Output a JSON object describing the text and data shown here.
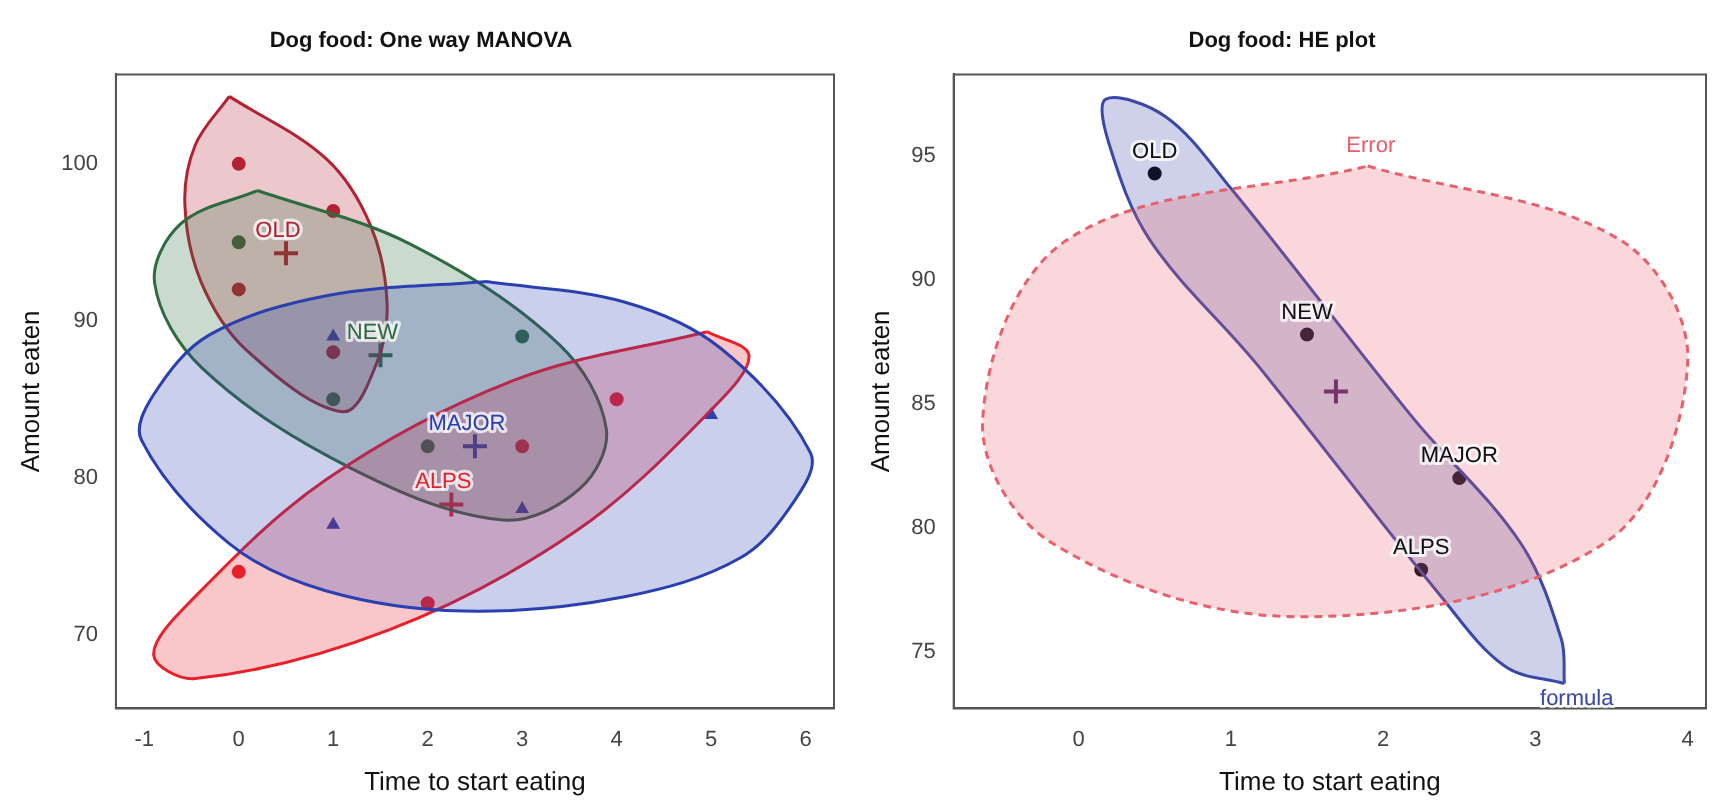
{
  "chart_data": [
    {
      "type": "scatter",
      "title": "Dog food: One way MANOVA",
      "xlabel": "Time to start eating",
      "ylabel": "Amount eaten",
      "xlim": [
        -1.3,
        6.3
      ],
      "ylim": [
        65.3,
        105.7
      ],
      "xticks": [
        -1,
        0,
        1,
        2,
        3,
        4,
        5,
        6
      ],
      "yticks": [
        70,
        80,
        90,
        100
      ],
      "grid": false,
      "series": [
        {
          "type": "area",
          "color": "#2a3fb0",
          "x": [
            2.62,
            0.93,
            -0.31,
            -0.9,
            -1.03,
            -0.1,
            0.92,
            2.38,
            4.07,
            5.31,
            5.9,
            6.05,
            5.1,
            4.08
          ],
          "values": [
            92.5,
            91.6,
            89.1,
            85.3,
            82.4,
            75.8,
            72.8,
            71.5,
            72.4,
            74.9,
            78.7,
            81.6,
            88.25,
            91.2
          ]
        },
        {
          "type": "area",
          "color": "#e8202a",
          "x": [
            4.96,
            5.4,
            5.03,
            3.57,
            1.59,
            -0.46,
            -0.9,
            -0.53,
            0.93,
            2.91
          ],
          "values": [
            89.3,
            87.8,
            84.5,
            76.6,
            70.3,
            67.2,
            68.7,
            72,
            79.9,
            86.2
          ]
        },
        {
          "type": "area",
          "color": "#2e6b3e",
          "x": [
            0.2,
            -0.61,
            -0.89,
            -0.39,
            1.19,
            2.8,
            3.61,
            3.89,
            3.39,
            1.81
          ],
          "values": [
            98.3,
            96.2,
            92.4,
            87,
            80.6,
            77.3,
            79.3,
            83.1,
            88.5,
            94.9
          ]
        },
        {
          "type": "area",
          "color": "#b22232",
          "x": [
            -0.1,
            -0.46,
            -0.57,
            -0.4,
            0.07,
            1.1,
            1.46,
            1.57,
            1.4,
            0.93
          ],
          "values": [
            104.3,
            101.2,
            97.4,
            92.5,
            88.2,
            84.2,
            87.3,
            91.1,
            96,
            100.3
          ]
        },
        {
          "type": "scatter",
          "marker": "circle",
          "color": "#b22232",
          "x": [
            0,
            1,
            0,
            1
          ],
          "values": [
            100,
            97,
            92,
            88
          ]
        },
        {
          "type": "scatter",
          "marker": "circle",
          "color": "#2e6b3e",
          "x": [
            0,
            1,
            2,
            3
          ],
          "values": [
            95,
            85,
            82,
            89
          ]
        },
        {
          "type": "scatter",
          "marker": "triangle",
          "color": "#2a3fb0",
          "x": [
            1,
            1,
            3,
            5
          ],
          "values": [
            89,
            77,
            78,
            84
          ]
        },
        {
          "type": "scatter",
          "marker": "circle",
          "color": "#e8202a",
          "x": [
            0,
            2,
            3,
            4
          ],
          "values": [
            74,
            72,
            82,
            85
          ]
        },
        {
          "type": "scatter",
          "marker": "cross",
          "name": "OLD",
          "color": "#b22232",
          "x": [
            0.5
          ],
          "values": [
            94.3
          ]
        },
        {
          "type": "scatter",
          "marker": "cross",
          "name": "NEW",
          "color": "#2e6b3e",
          "x": [
            1.5
          ],
          "values": [
            87.8
          ]
        },
        {
          "type": "scatter",
          "marker": "cross",
          "name": "MAJOR",
          "color": "#2a3fb0",
          "x": [
            2.5
          ],
          "values": [
            82
          ]
        },
        {
          "type": "scatter",
          "marker": "cross",
          "name": "ALPS",
          "color": "#e8202a",
          "x": [
            2.25
          ],
          "values": [
            78.3
          ]
        }
      ]
    },
    {
      "type": "scatter",
      "title": "Dog food: HE plot",
      "xlabel": "Time to start eating",
      "ylabel": "Amount eaten",
      "xlim": [
        -0.82,
        4.12
      ],
      "ylim": [
        72.7,
        98.3
      ],
      "xticks": [
        0,
        1,
        2,
        3,
        4
      ],
      "yticks": [
        75,
        80,
        85,
        90,
        95
      ],
      "grid": false,
      "series": [
        {
          "type": "area",
          "name": "Error",
          "color": "#e8606c",
          "line_style": "dashed",
          "x": [
            1.9,
            3.56,
            4.0,
            3.46,
            1.45,
            -0.18,
            -0.63,
            -0.08
          ],
          "values": [
            94.6,
            91.6,
            86.7,
            79.4,
            76.4,
            79.4,
            84.3,
            91.6
          ]
        },
        {
          "type": "area",
          "name": "formula",
          "color": "#3a48a8",
          "x": [
            3.19,
            2.8,
            2.37,
            1.17,
            0.47,
            0.2,
            0.18,
            0.57,
            1.0,
            2.2,
            2.9,
            3.17
          ],
          "values": [
            73.7,
            74.4,
            77.3,
            86.6,
            91.6,
            95.5,
            97.3,
            96.6,
            93.7,
            84.4,
            79.4,
            75.5
          ]
        },
        {
          "type": "scatter",
          "marker": "circle",
          "color": "#000000",
          "x": [
            0.5,
            1.5,
            2.5,
            2.25
          ],
          "values": [
            94.3,
            87.8,
            82,
            78.3
          ]
        },
        {
          "type": "scatter",
          "marker": "cross",
          "color": "#5a1a50",
          "x": [
            1.69
          ],
          "values": [
            85.5
          ]
        }
      ],
      "annotations": [
        {
          "text": "OLD",
          "x": 0.5,
          "y": 94.3
        },
        {
          "text": "NEW",
          "x": 1.5,
          "y": 87.8
        },
        {
          "text": "MAJOR",
          "x": 2.5,
          "y": 82
        },
        {
          "text": "ALPS",
          "x": 2.25,
          "y": 78.3
        }
      ]
    }
  ]
}
